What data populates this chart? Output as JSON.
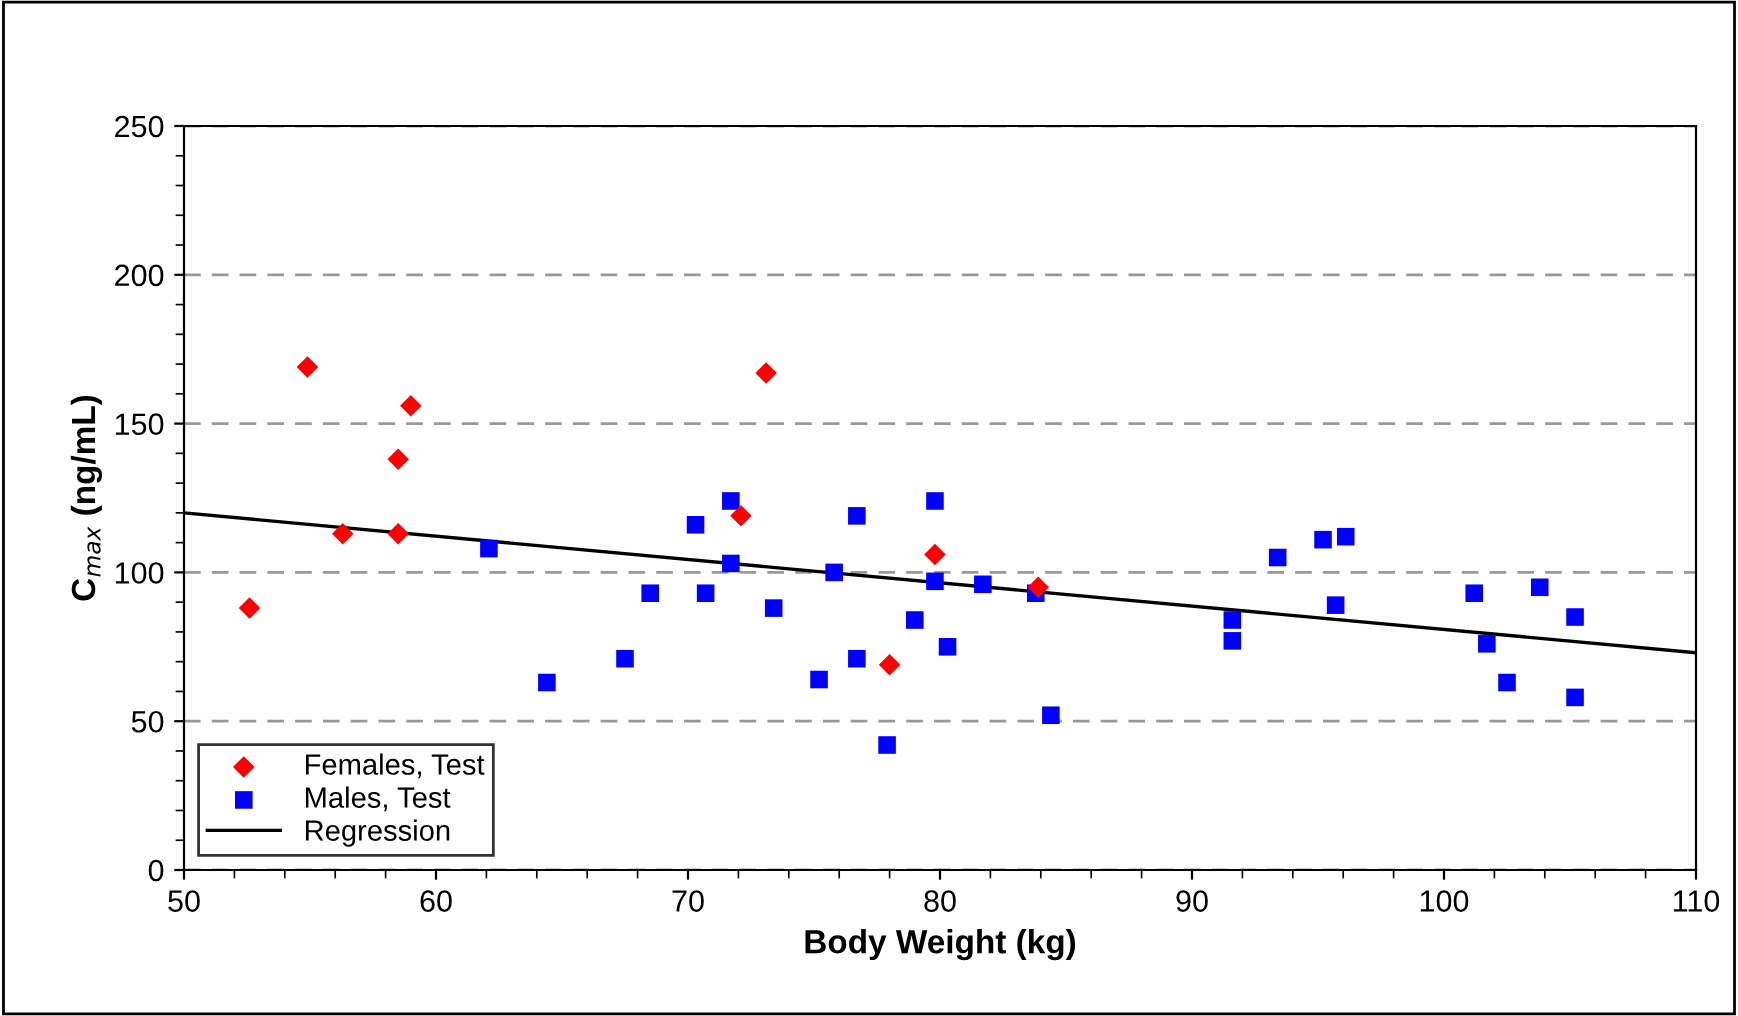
{
  "chart_data": {
    "type": "scatter",
    "xlabel": "Body Weight (kg)",
    "ylabel": "C$_{max}$ (ng/mL)",
    "xlim": [
      50,
      110
    ],
    "xticks": [
      50,
      60,
      70,
      80,
      90,
      100,
      110
    ],
    "ylim": [
      0,
      250
    ],
    "yticks": [
      0,
      50,
      100,
      150,
      200,
      250
    ],
    "grid": "y",
    "legend": "bottom left",
    "series": [
      {
        "name": "Females, Test",
        "color": "#ff0000",
        "marker": "diamond",
        "x": [
          52.6,
          54.9,
          56.3,
          58.5,
          58.5,
          59.0,
          72.1,
          73.1,
          79.8,
          78.0,
          83.9
        ],
        "values": [
          88,
          169,
          113,
          138,
          113,
          156,
          119,
          167,
          106,
          69,
          95
        ]
      },
      {
        "name": "Males, Test",
        "color": "#0000ff",
        "marker": "square",
        "x": [
          62.1,
          64.4,
          67.5,
          68.5,
          70.3,
          70.7,
          71.7,
          71.7,
          73.4,
          75.2,
          75.8,
          76.7,
          76.7,
          77.9,
          79.0,
          79.8,
          79.8,
          80.3,
          81.7,
          83.8,
          84.4,
          91.6,
          91.6,
          93.4,
          95.2,
          96.1,
          95.7,
          101.2,
          101.7,
          102.5,
          103.8,
          105.2,
          105.2
        ],
        "values": [
          108,
          63,
          71,
          93,
          116,
          93,
          124,
          103,
          88,
          64,
          100,
          119,
          71,
          42,
          84,
          124,
          97,
          75,
          96,
          93,
          52,
          84,
          77,
          105,
          111,
          112,
          89,
          93,
          76,
          63,
          95,
          85,
          58
        ]
      },
      {
        "name": "Regression",
        "type": "line",
        "color": "#000000",
        "marker": "none",
        "x": [
          50,
          110
        ],
        "values": [
          120,
          73
        ]
      }
    ]
  }
}
